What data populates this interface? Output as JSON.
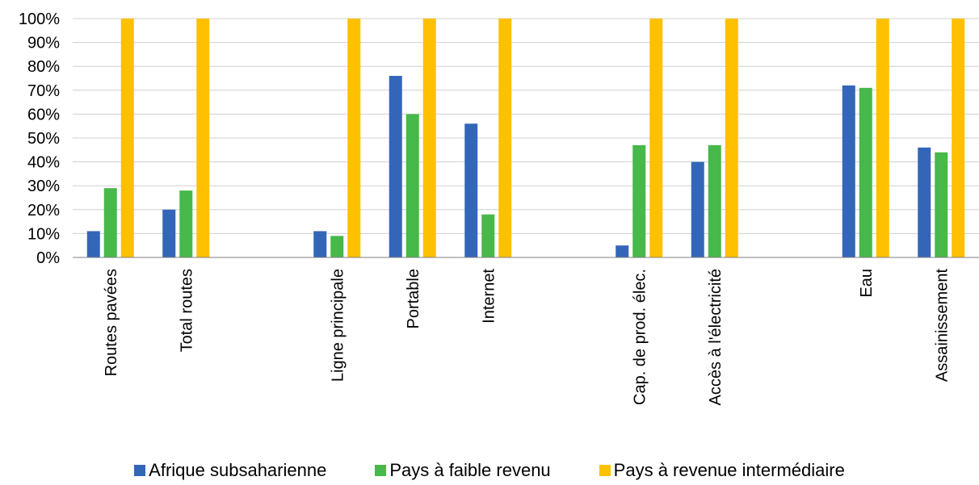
{
  "chart_data": {
    "type": "bar",
    "categories": [
      "Routes pavées",
      "Total routes",
      "",
      "Ligne principale",
      "Portable",
      "Internet",
      "",
      "Cap. de prod. élec.",
      "Accès à l'électricité",
      "",
      "Eau",
      "Assainissement"
    ],
    "series": [
      {
        "name": "Afrique subsaharienne",
        "color": "#3366B8",
        "values": [
          11,
          20,
          null,
          11,
          76,
          56,
          null,
          5,
          40,
          null,
          72,
          46
        ]
      },
      {
        "name": "Pays à faible revenu",
        "color": "#47B84A",
        "values": [
          29,
          28,
          null,
          9,
          60,
          18,
          null,
          47,
          47,
          null,
          71,
          44
        ]
      },
      {
        "name": "Pays à revenue intermédiaire",
        "color": "#FFC000",
        "values": [
          100,
          100,
          null,
          100,
          100,
          100,
          null,
          100,
          100,
          null,
          100,
          100
        ]
      }
    ],
    "yticks": [
      "0%",
      "10%",
      "20%",
      "30%",
      "40%",
      "50%",
      "60%",
      "70%",
      "80%",
      "90%",
      "100%"
    ],
    "ylim": [
      0,
      100
    ],
    "grid": true,
    "legend_position": "bottom"
  }
}
